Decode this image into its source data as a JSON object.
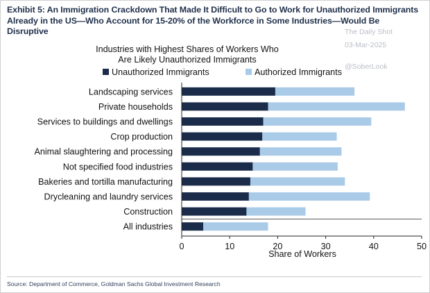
{
  "header": {
    "exhibit_line1": "Exhibit 5: An Immigration Crackdown That Made It Difficult to Go to Work for Unauthorized Immigrants",
    "exhibit_line2": "Already in the US—Who Account for 15-20% of the Workforce in Some Industries—Would Be Disruptive",
    "watermark_name": "The Daily Shot",
    "watermark_date": "03-Mar-2025",
    "watermark_handle": "@SoberLook"
  },
  "source": "Source: Department of Commerce, Goldman Sachs Global Investment Research",
  "colors": {
    "unauthorized": "#1b2c4b",
    "authorized": "#aacbe8",
    "title": "#1f2f4a"
  },
  "chart_data": {
    "type": "bar",
    "orientation": "horizontal",
    "stacked": true,
    "title_line1": "Industries with Highest Shares of Workers Who",
    "title_line2": "Are Likely Unauthorized Immigrants",
    "xlabel": "Share of Workers",
    "ylabel": "",
    "xlim": [
      0,
      50
    ],
    "xticks": [
      0,
      10,
      20,
      30,
      40,
      50
    ],
    "legend_position": "top",
    "grid": false,
    "categories": [
      "Landscaping services",
      "Private households",
      "Services to buildings and dwellings",
      "Crop production",
      "Animal slaughtering and processing",
      "Not specified food industries",
      "Bakeries and tortilla manufacturing",
      "Drycleaning and laundry services",
      "Construction",
      "All industries"
    ],
    "series": [
      {
        "name": "Unauthorized Immigrants",
        "values": [
          19.5,
          18.0,
          17.0,
          16.8,
          16.3,
          14.8,
          14.3,
          14.0,
          13.5,
          4.5
        ]
      },
      {
        "name": "Authorized Immigrants",
        "values": [
          16.5,
          28.5,
          22.5,
          15.5,
          17.0,
          17.7,
          19.7,
          25.2,
          12.3,
          13.5
        ]
      }
    ]
  }
}
